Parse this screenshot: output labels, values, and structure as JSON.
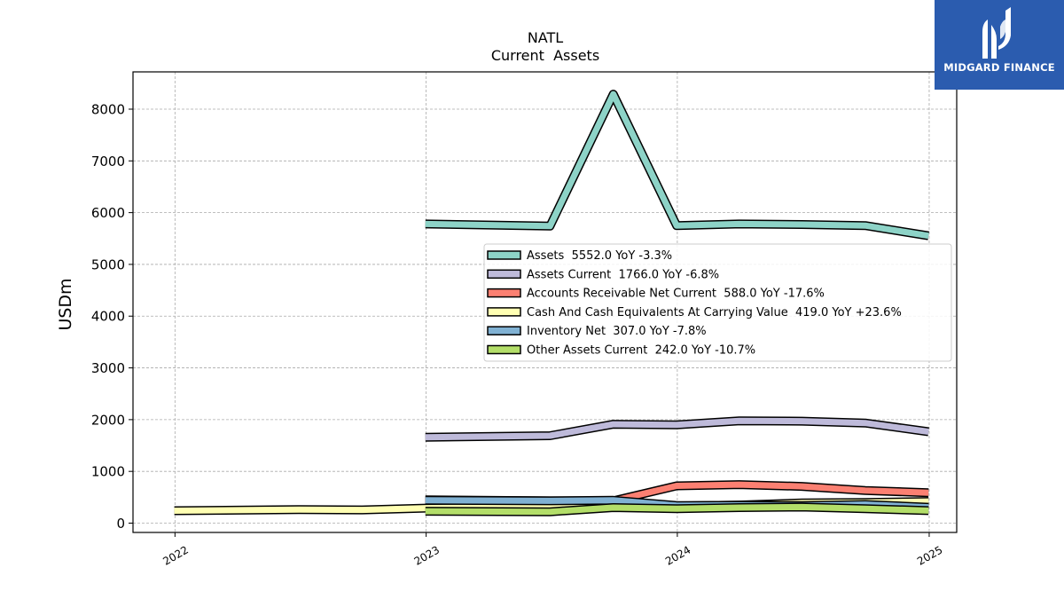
{
  "brand": {
    "name": "MIDGARD FINANCE",
    "color": "#2b5caf"
  },
  "chart_data": {
    "type": "line",
    "title": "NATL",
    "subtitle": "Current  Assets",
    "xlabel": "",
    "ylabel": "USDm",
    "x_ticks": [
      "2022",
      "2023",
      "2024",
      "2025"
    ],
    "y_ticks": [
      0,
      1000,
      2000,
      3000,
      4000,
      5000,
      6000,
      7000,
      8000
    ],
    "xlim": [
      "2021-11-01",
      "2025-02-10"
    ],
    "ylim": [
      -180,
      8720
    ],
    "grid": true,
    "legend_position": "center-right",
    "series": [
      {
        "name": "Assets",
        "legend": "Assets  5552.0 YoY -3.3%",
        "color": "#8dd3c7",
        "x": [
          "2022-12-31",
          "2023-06-30",
          "2023-09-30",
          "2023-12-31",
          "2024-03-31",
          "2024-06-30",
          "2024-09-30",
          "2024-12-31"
        ],
        "values": [
          5780,
          5740,
          8290,
          5750,
          5780,
          5770,
          5750,
          5552
        ]
      },
      {
        "name": "Assets Current",
        "legend": "Assets Current  1766.0 YoY -6.8%",
        "color": "#bebada",
        "x": [
          "2022-12-31",
          "2023-06-30",
          "2023-09-30",
          "2023-12-31",
          "2024-03-31",
          "2024-06-30",
          "2024-09-30",
          "2024-12-31"
        ],
        "values": [
          1660,
          1690,
          1910,
          1900,
          1975,
          1970,
          1935,
          1766
        ]
      },
      {
        "name": "Accounts Receivable Net Current",
        "legend": "Accounts Receivable Net Current  588.0 YoY -17.6%",
        "color": "#fb8072",
        "x": [
          "2022-12-31",
          "2023-06-30",
          "2023-09-30",
          "2023-12-31",
          "2024-03-31",
          "2024-06-30",
          "2024-09-30",
          "2024-12-31"
        ],
        "values": [
          450,
          430,
          430,
          720,
          745,
          710,
          630,
          588
        ]
      },
      {
        "name": "Cash And Cash Equivalents At Carrying Value",
        "legend": "Cash And Cash Equivalents At Carrying Value  419.0 YoY +23.6%",
        "color": "#ffffb3",
        "x": [
          "2021-12-31",
          "2022-06-30",
          "2022-09-30",
          "2022-12-31",
          "2023-06-30",
          "2023-09-30",
          "2023-12-31",
          "2024-03-31",
          "2024-06-30",
          "2024-09-30",
          "2024-12-31"
        ],
        "values": [
          240,
          260,
          255,
          290,
          320,
          400,
          330,
          350,
          390,
          400,
          419
        ]
      },
      {
        "name": "Inventory Net",
        "legend": "Inventory Net  307.0 YoY -7.8%",
        "color": "#80b1d3",
        "x": [
          "2022-12-31",
          "2023-06-30",
          "2023-09-30",
          "2023-12-31",
          "2024-03-31",
          "2024-06-30",
          "2024-09-30",
          "2024-12-31"
        ],
        "values": [
          440,
          430,
          440,
          340,
          345,
          340,
          360,
          307
        ]
      },
      {
        "name": "Other Assets Current",
        "legend": "Other Assets Current  242.0 YoY -10.7%",
        "color": "#b3de69",
        "x": [
          "2022-12-31",
          "2023-06-30",
          "2023-09-30",
          "2023-12-31",
          "2024-03-31",
          "2024-06-30",
          "2024-09-30",
          "2024-12-31"
        ],
        "values": [
          230,
          220,
          300,
          280,
          300,
          310,
          280,
          242
        ]
      }
    ]
  }
}
